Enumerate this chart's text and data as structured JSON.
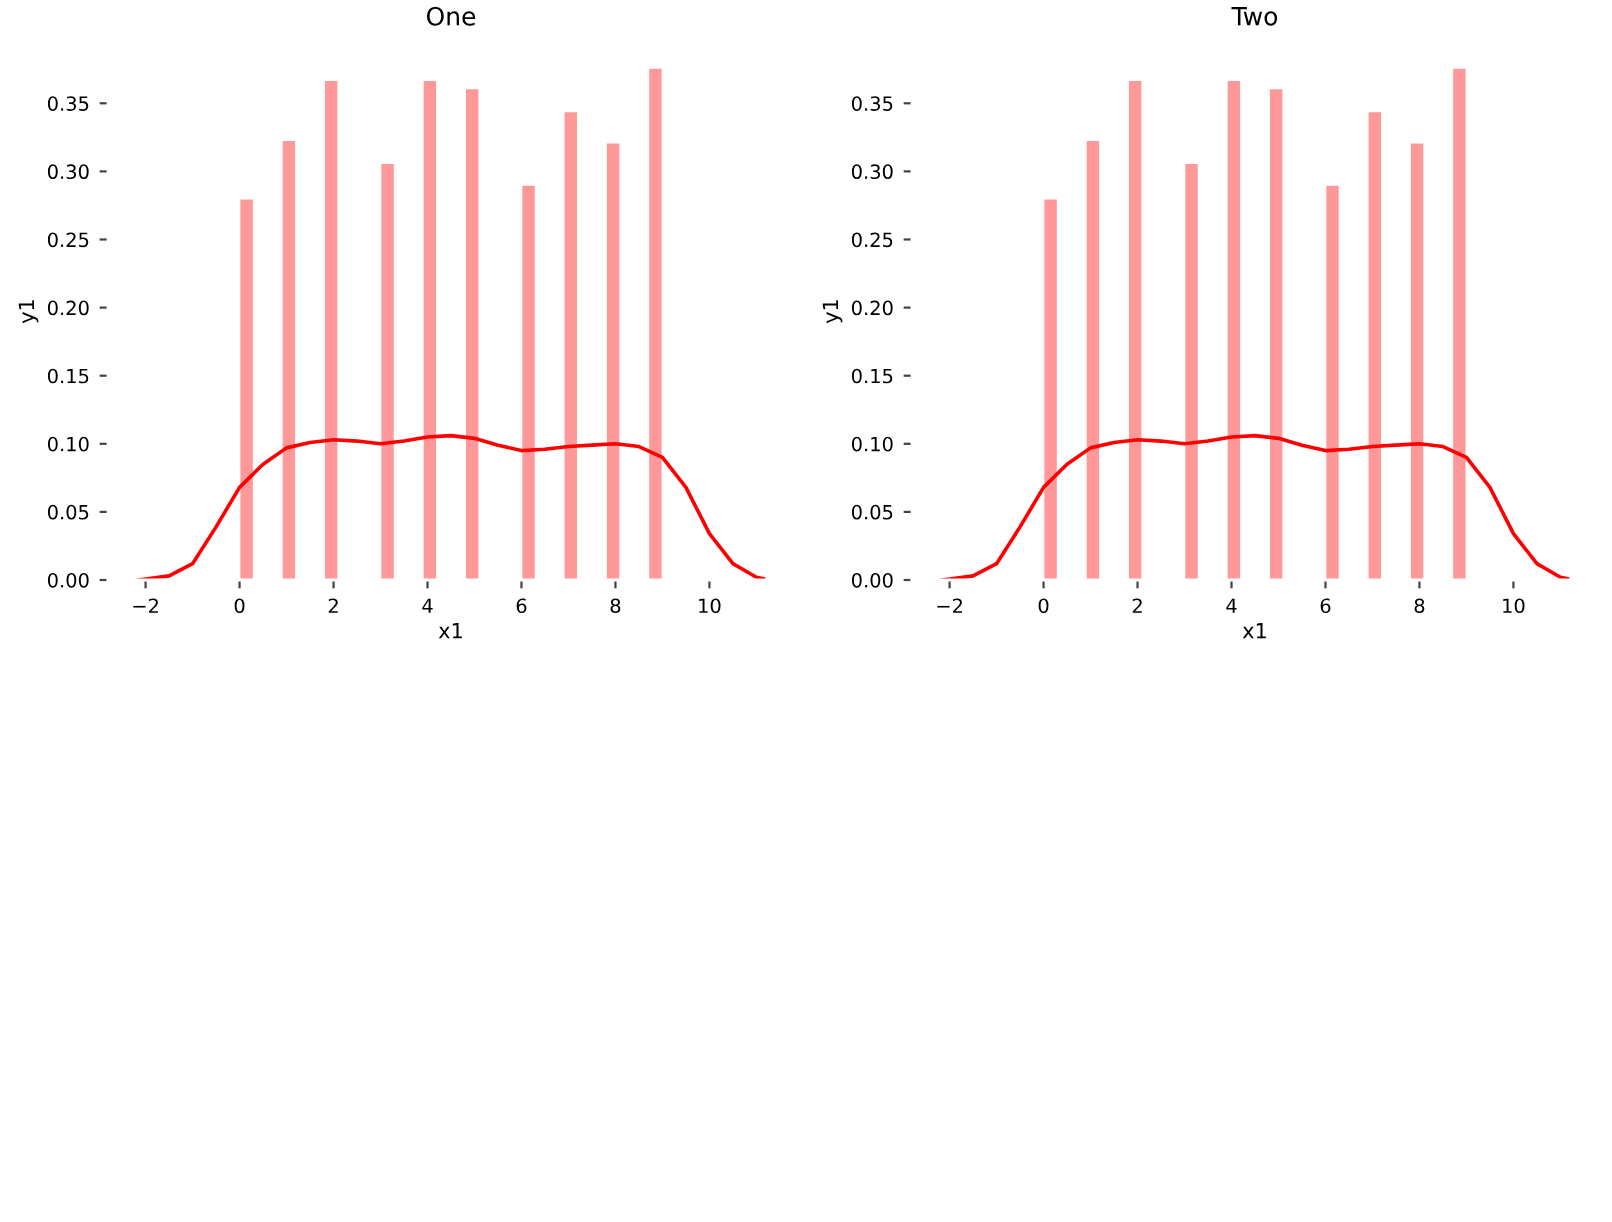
{
  "chart_data": [
    {
      "type": "histogram",
      "title": "One",
      "xlabel": "x1",
      "ylabel": "y1",
      "xlim": [
        -2.8,
        11.8
      ],
      "ylim": [
        0,
        0.395
      ],
      "xticks": [
        {
          "value": -2,
          "label": "−2"
        },
        0,
        2,
        4,
        6,
        8,
        10
      ],
      "yticks": [
        {
          "value": 0,
          "label": "0.00"
        },
        {
          "value": 0.05,
          "label": "0.05"
        },
        {
          "value": 0.1,
          "label": "0.10"
        },
        {
          "value": 0.15,
          "label": "0.15"
        },
        {
          "value": 0.2,
          "label": "0.20"
        },
        {
          "value": 0.25,
          "label": "0.25"
        },
        {
          "value": 0.3,
          "label": "0.30"
        },
        {
          "value": 0.35,
          "label": "0.35"
        }
      ],
      "grid": false,
      "series": [
        {
          "type": "histogram",
          "color": "#ff9999",
          "bins": [
            0,
            0.3,
            0.6,
            0.9,
            1.2,
            1.5,
            1.8,
            2.1,
            2.4,
            2.7,
            3.0,
            3.3,
            3.6,
            3.9,
            4.2,
            4.5,
            4.8,
            5.1,
            5.4,
            5.7,
            6.0,
            6.3,
            6.6,
            6.9,
            7.2,
            7.5,
            7.8,
            8.1,
            8.4,
            8.7,
            9.0
          ],
          "values": [
            0.28,
            0,
            0,
            0.323,
            0,
            0,
            0.367,
            0,
            0,
            0,
            0.306,
            0,
            0,
            0.367,
            0,
            0,
            0.361,
            0,
            0,
            0,
            0.29,
            0,
            0,
            0.344,
            0,
            0,
            0.321,
            0,
            0,
            0.376
          ]
        },
        {
          "type": "line",
          "color": "#ff0000",
          "x": [
            -2.15,
            -1.5,
            -1,
            -0.5,
            0,
            0.5,
            1,
            1.5,
            2,
            2.5,
            3,
            3.5,
            4,
            4.5,
            5,
            5.5,
            6,
            6.5,
            7,
            7.5,
            8,
            8.5,
            9,
            9.5,
            10,
            10.5,
            11,
            11.15
          ],
          "values": [
            0.0,
            0.003,
            0.012,
            0.039,
            0.068,
            0.085,
            0.097,
            0.101,
            0.103,
            0.102,
            0.1,
            0.102,
            0.105,
            0.106,
            0.104,
            0.099,
            0.095,
            0.096,
            0.098,
            0.099,
            0.1,
            0.098,
            0.09,
            0.068,
            0.034,
            0.012,
            0.002,
            0.001
          ]
        }
      ]
    },
    {
      "type": "histogram",
      "title": "Two",
      "xlabel": "x1",
      "ylabel": "y1",
      "xlim": [
        -2.8,
        11.8
      ],
      "ylim": [
        0,
        0.395
      ],
      "xticks": [
        {
          "value": -2,
          "label": "−2"
        },
        0,
        2,
        4,
        6,
        8,
        10
      ],
      "yticks": [
        {
          "value": 0,
          "label": "0.00"
        },
        {
          "value": 0.05,
          "label": "0.05"
        },
        {
          "value": 0.1,
          "label": "0.10"
        },
        {
          "value": 0.15,
          "label": "0.15"
        },
        {
          "value": 0.2,
          "label": "0.20"
        },
        {
          "value": 0.25,
          "label": "0.25"
        },
        {
          "value": 0.3,
          "label": "0.30"
        },
        {
          "value": 0.35,
          "label": "0.35"
        }
      ],
      "grid": false,
      "series": [
        {
          "type": "histogram",
          "color": "#ff9999",
          "bins": [
            0,
            0.3,
            0.6,
            0.9,
            1.2,
            1.5,
            1.8,
            2.1,
            2.4,
            2.7,
            3.0,
            3.3,
            3.6,
            3.9,
            4.2,
            4.5,
            4.8,
            5.1,
            5.4,
            5.7,
            6.0,
            6.3,
            6.6,
            6.9,
            7.2,
            7.5,
            7.8,
            8.1,
            8.4,
            8.7,
            9.0
          ],
          "values": [
            0.28,
            0,
            0,
            0.323,
            0,
            0,
            0.367,
            0,
            0,
            0,
            0.306,
            0,
            0,
            0.367,
            0,
            0,
            0.361,
            0,
            0,
            0,
            0.29,
            0,
            0,
            0.344,
            0,
            0,
            0.321,
            0,
            0,
            0.376
          ]
        },
        {
          "type": "line",
          "color": "#ff0000",
          "x": [
            -2.15,
            -1.5,
            -1,
            -0.5,
            0,
            0.5,
            1,
            1.5,
            2,
            2.5,
            3,
            3.5,
            4,
            4.5,
            5,
            5.5,
            6,
            6.5,
            7,
            7.5,
            8,
            8.5,
            9,
            9.5,
            10,
            10.5,
            11,
            11.15
          ],
          "values": [
            0.0,
            0.003,
            0.012,
            0.039,
            0.068,
            0.085,
            0.097,
            0.101,
            0.103,
            0.102,
            0.1,
            0.102,
            0.105,
            0.106,
            0.104,
            0.099,
            0.095,
            0.096,
            0.098,
            0.099,
            0.1,
            0.098,
            0.09,
            0.068,
            0.034,
            0.012,
            0.002,
            0.001
          ]
        }
      ]
    }
  ]
}
